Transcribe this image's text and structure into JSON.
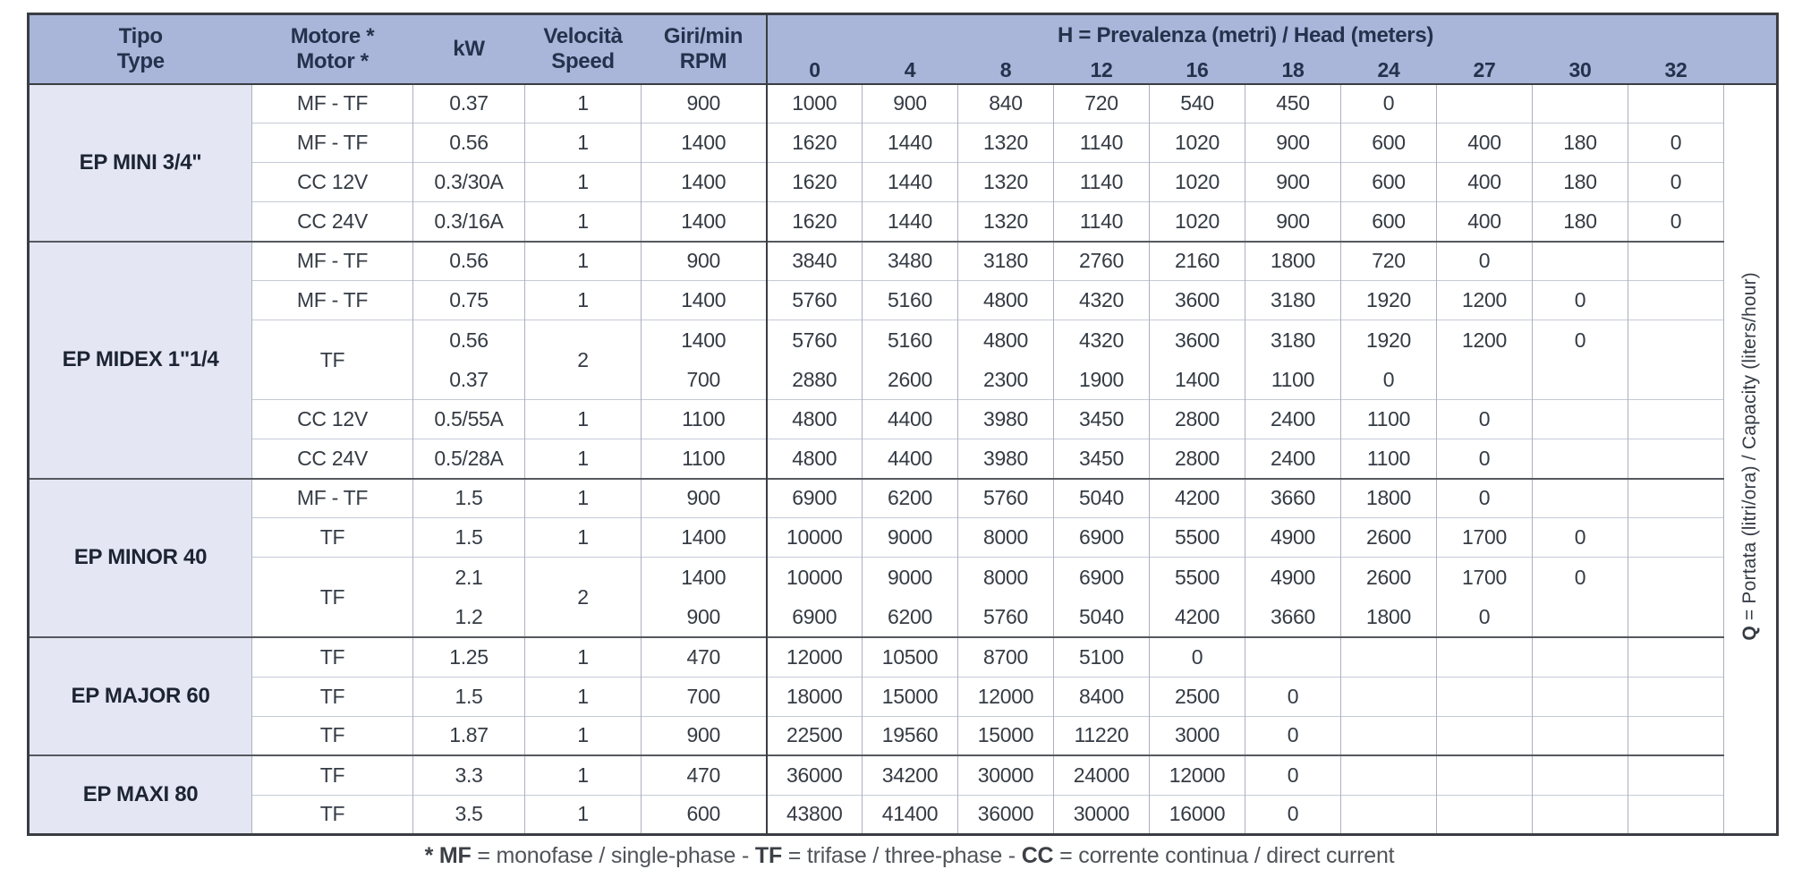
{
  "header": {
    "tipo": [
      "Tipo",
      "Type"
    ],
    "motore": [
      "Motore *",
      "Motor *"
    ],
    "kw": "kW",
    "velocita": [
      "Velocità",
      "Speed"
    ],
    "giri": [
      "Giri/min",
      "RPM"
    ],
    "h_bold": "H",
    "h_rest": " = Prevalenza (metri) / Head (meters)",
    "h_columns": [
      "0",
      "4",
      "8",
      "12",
      "16",
      "18",
      "24",
      "27",
      "30",
      "32"
    ]
  },
  "q_label": {
    "bold": "Q",
    "rest": " = Portata (litri/ora) / Capacity (liters/hour)"
  },
  "groups": [
    {
      "type": "EP MINI 3/4\"",
      "rows": [
        {
          "motor": "MF - TF",
          "kw": [
            "0.37"
          ],
          "speed": "1",
          "rpm": [
            "900"
          ],
          "lines": [
            [
              "1000",
              "900",
              "840",
              "720",
              "540",
              "450",
              "0",
              "",
              "",
              ""
            ]
          ]
        },
        {
          "motor": "MF - TF",
          "kw": [
            "0.56"
          ],
          "speed": "1",
          "rpm": [
            "1400"
          ],
          "lines": [
            [
              "1620",
              "1440",
              "1320",
              "1140",
              "1020",
              "900",
              "600",
              "400",
              "180",
              "0"
            ]
          ]
        },
        {
          "motor": "CC 12V",
          "kw": [
            "0.3/30A"
          ],
          "speed": "1",
          "rpm": [
            "1400"
          ],
          "lines": [
            [
              "1620",
              "1440",
              "1320",
              "1140",
              "1020",
              "900",
              "600",
              "400",
              "180",
              "0"
            ]
          ]
        },
        {
          "motor": "CC 24V",
          "kw": [
            "0.3/16A"
          ],
          "speed": "1",
          "rpm": [
            "1400"
          ],
          "lines": [
            [
              "1620",
              "1440",
              "1320",
              "1140",
              "1020",
              "900",
              "600",
              "400",
              "180",
              "0"
            ]
          ]
        }
      ]
    },
    {
      "type": "EP MIDEX 1\"1/4",
      "rows": [
        {
          "motor": "MF - TF",
          "kw": [
            "0.56"
          ],
          "speed": "1",
          "rpm": [
            "900"
          ],
          "lines": [
            [
              "3840",
              "3480",
              "3180",
              "2760",
              "2160",
              "1800",
              "720",
              "0",
              "",
              ""
            ]
          ]
        },
        {
          "motor": "MF - TF",
          "kw": [
            "0.75"
          ],
          "speed": "1",
          "rpm": [
            "1400"
          ],
          "lines": [
            [
              "5760",
              "5160",
              "4800",
              "4320",
              "3600",
              "3180",
              "1920",
              "1200",
              "0",
              ""
            ]
          ]
        },
        {
          "motor": "TF",
          "kw": [
            "0.56",
            "0.37"
          ],
          "speed": "2",
          "rpm": [
            "1400",
            "700"
          ],
          "lines": [
            [
              "5760",
              "5160",
              "4800",
              "4320",
              "3600",
              "3180",
              "1920",
              "1200",
              "0",
              ""
            ],
            [
              "2880",
              "2600",
              "2300",
              "1900",
              "1400",
              "1100",
              "0",
              "",
              "",
              ""
            ]
          ]
        },
        {
          "motor": "CC 12V",
          "kw": [
            "0.5/55A"
          ],
          "speed": "1",
          "rpm": [
            "1100"
          ],
          "lines": [
            [
              "4800",
              "4400",
              "3980",
              "3450",
              "2800",
              "2400",
              "1100",
              "0",
              "",
              ""
            ]
          ]
        },
        {
          "motor": "CC 24V",
          "kw": [
            "0.5/28A"
          ],
          "speed": "1",
          "rpm": [
            "1100"
          ],
          "lines": [
            [
              "4800",
              "4400",
              "3980",
              "3450",
              "2800",
              "2400",
              "1100",
              "0",
              "",
              ""
            ]
          ]
        }
      ]
    },
    {
      "type": "EP MINOR 40",
      "rows": [
        {
          "motor": "MF - TF",
          "kw": [
            "1.5"
          ],
          "speed": "1",
          "rpm": [
            "900"
          ],
          "lines": [
            [
              "6900",
              "6200",
              "5760",
              "5040",
              "4200",
              "3660",
              "1800",
              "0",
              "",
              ""
            ]
          ]
        },
        {
          "motor": "TF",
          "kw": [
            "1.5"
          ],
          "speed": "1",
          "rpm": [
            "1400"
          ],
          "lines": [
            [
              "10000",
              "9000",
              "8000",
              "6900",
              "5500",
              "4900",
              "2600",
              "1700",
              "0",
              ""
            ]
          ]
        },
        {
          "motor": "TF",
          "kw": [
            "2.1",
            "1.2"
          ],
          "speed": "2",
          "rpm": [
            "1400",
            "900"
          ],
          "lines": [
            [
              "10000",
              "9000",
              "8000",
              "6900",
              "5500",
              "4900",
              "2600",
              "1700",
              "0",
              ""
            ],
            [
              "6900",
              "6200",
              "5760",
              "5040",
              "4200",
              "3660",
              "1800",
              "0",
              "",
              ""
            ]
          ]
        }
      ]
    },
    {
      "type": "EP MAJOR 60",
      "rows": [
        {
          "motor": "TF",
          "kw": [
            "1.25"
          ],
          "speed": "1",
          "rpm": [
            "470"
          ],
          "lines": [
            [
              "12000",
              "10500",
              "8700",
              "5100",
              "0",
              "",
              "",
              "",
              "",
              ""
            ]
          ]
        },
        {
          "motor": "TF",
          "kw": [
            "1.5"
          ],
          "speed": "1",
          "rpm": [
            "700"
          ],
          "lines": [
            [
              "18000",
              "15000",
              "12000",
              "8400",
              "2500",
              "0",
              "",
              "",
              "",
              ""
            ]
          ]
        },
        {
          "motor": "TF",
          "kw": [
            "1.87"
          ],
          "speed": "1",
          "rpm": [
            "900"
          ],
          "lines": [
            [
              "22500",
              "19560",
              "15000",
              "11220",
              "3000",
              "0",
              "",
              "",
              "",
              ""
            ]
          ]
        }
      ]
    },
    {
      "type": "EP MAXI 80",
      "rows": [
        {
          "motor": "TF",
          "kw": [
            "3.3"
          ],
          "speed": "1",
          "rpm": [
            "470"
          ],
          "lines": [
            [
              "36000",
              "34200",
              "30000",
              "24000",
              "12000",
              "0",
              "",
              "",
              "",
              ""
            ]
          ]
        },
        {
          "motor": "TF",
          "kw": [
            "3.5"
          ],
          "speed": "1",
          "rpm": [
            "600"
          ],
          "lines": [
            [
              "43800",
              "41400",
              "36000",
              "30000",
              "16000",
              "0",
              "",
              "",
              "",
              ""
            ]
          ]
        }
      ]
    }
  ],
  "footnote": {
    "bold1": "* MF",
    "rest1": " = monofase / single-phase - ",
    "bold2": "TF",
    "rest2": " = trifase / three-phase - ",
    "bold3": "CC",
    "rest3": " = corrente continua / direct current"
  },
  "colors": {
    "header_bg": "#a9b5d9",
    "type_column_bg": "#e4e7f3",
    "header_text": "#24324c",
    "body_text": "#353b44",
    "border_dark": "#3a3d42",
    "border_light": "#c4cad6"
  }
}
